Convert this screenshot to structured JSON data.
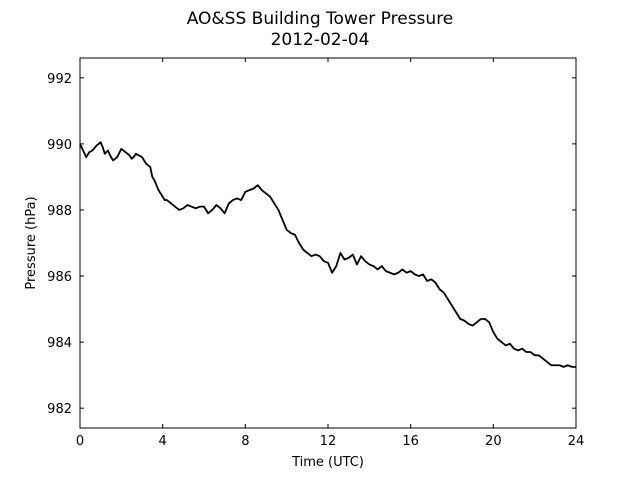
{
  "chart_data": {
    "type": "line",
    "title": "AO&SS Building Tower Pressure",
    "subtitle": "2012-02-04",
    "xlabel": "Time (UTC)",
    "ylabel": "Pressure (hPa)",
    "xlim": [
      0,
      24
    ],
    "ylim": [
      981.4,
      992.6
    ],
    "xticks": [
      0,
      4,
      8,
      12,
      16,
      20,
      24
    ],
    "yticks": [
      982,
      984,
      986,
      988,
      990,
      992
    ],
    "grid": false,
    "line_color": "#000000",
    "series": [
      {
        "x": [
          0,
          0.15,
          0.3,
          0.45,
          0.6,
          0.8,
          1.0,
          1.1,
          1.2,
          1.35,
          1.5,
          1.6,
          1.8,
          2.0,
          2.2,
          2.4,
          2.5,
          2.6,
          2.7,
          2.85,
          3.0,
          3.2,
          3.4,
          3.5,
          3.6,
          3.7,
          3.8,
          4.0,
          4.1,
          4.2,
          4.4,
          4.6,
          4.8,
          5.0,
          5.2,
          5.4,
          5.6,
          5.8,
          6.0,
          6.2,
          6.4,
          6.6,
          6.8,
          7.0,
          7.2,
          7.4,
          7.6,
          7.8,
          8.0,
          8.2,
          8.4,
          8.6,
          8.8,
          9.0,
          9.2,
          9.4,
          9.6,
          9.8,
          10.0,
          10.2,
          10.4,
          10.6,
          10.8,
          11.0,
          11.2,
          11.4,
          11.6,
          11.8,
          12.0,
          12.2,
          12.4,
          12.6,
          12.8,
          13.0,
          13.2,
          13.4,
          13.6,
          13.8,
          14.0,
          14.2,
          14.4,
          14.6,
          14.8,
          15.0,
          15.2,
          15.4,
          15.6,
          15.8,
          16.0,
          16.2,
          16.4,
          16.6,
          16.8,
          17.0,
          17.2,
          17.4,
          17.6,
          17.8,
          18.0,
          18.2,
          18.4,
          18.6,
          18.8,
          19.0,
          19.2,
          19.4,
          19.6,
          19.8,
          20.0,
          20.2,
          20.4,
          20.6,
          20.8,
          21.0,
          21.2,
          21.4,
          21.6,
          21.8,
          22.0,
          22.2,
          22.4,
          22.6,
          22.8,
          23.0,
          23.2,
          23.4,
          23.6,
          23.8,
          24.0
        ],
        "values": [
          990.0,
          989.8,
          989.6,
          989.75,
          989.8,
          989.95,
          990.05,
          989.9,
          989.7,
          989.8,
          989.6,
          989.5,
          989.6,
          989.85,
          989.75,
          989.65,
          989.55,
          989.6,
          989.7,
          989.65,
          989.6,
          989.4,
          989.3,
          989.0,
          988.9,
          988.75,
          988.6,
          988.4,
          988.3,
          988.3,
          988.2,
          988.1,
          988.0,
          988.05,
          988.15,
          988.1,
          988.05,
          988.1,
          988.1,
          987.9,
          988.0,
          988.15,
          988.05,
          987.9,
          988.2,
          988.3,
          988.35,
          988.3,
          988.55,
          988.6,
          988.65,
          988.75,
          988.6,
          988.5,
          988.4,
          988.2,
          988.0,
          987.7,
          987.4,
          987.3,
          987.25,
          987.0,
          986.8,
          986.7,
          986.6,
          986.65,
          986.6,
          986.45,
          986.4,
          986.1,
          986.3,
          986.7,
          986.5,
          986.55,
          986.65,
          986.35,
          986.6,
          986.45,
          986.35,
          986.3,
          986.2,
          986.3,
          986.15,
          986.1,
          986.05,
          986.1,
          986.2,
          986.1,
          986.15,
          986.05,
          986.0,
          986.05,
          985.85,
          985.9,
          985.8,
          985.6,
          985.5,
          985.3,
          985.1,
          984.9,
          984.7,
          984.65,
          984.55,
          984.5,
          984.6,
          984.7,
          984.7,
          984.6,
          984.3,
          984.1,
          984.0,
          983.9,
          983.95,
          983.8,
          983.75,
          983.8,
          983.7,
          983.7,
          983.6,
          983.6,
          983.5,
          983.4,
          983.3,
          983.3,
          983.3,
          983.25,
          983.3,
          983.25,
          983.25
        ]
      }
    ]
  }
}
